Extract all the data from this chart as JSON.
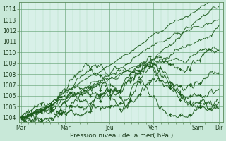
{
  "background_color": "#c8e8d8",
  "plot_bg_color": "#d8f0e8",
  "grid_color_major": "#5a9a6a",
  "grid_color_minor": "#8fcc9f",
  "line_color": "#1a5a1a",
  "xlabel": "Pression niveau de la mer( hPa )",
  "ylim": [
    1003.6,
    1014.6
  ],
  "yticks": [
    1004,
    1005,
    1006,
    1007,
    1008,
    1009,
    1010,
    1011,
    1012,
    1013,
    1014
  ],
  "day_labels": [
    "Mar",
    "Mar",
    "Jeu",
    "Ven",
    "Sam",
    "Dir"
  ],
  "day_positions": [
    0,
    48,
    96,
    144,
    192,
    215
  ],
  "total_hours": 215,
  "xlim": [
    -2,
    220
  ]
}
